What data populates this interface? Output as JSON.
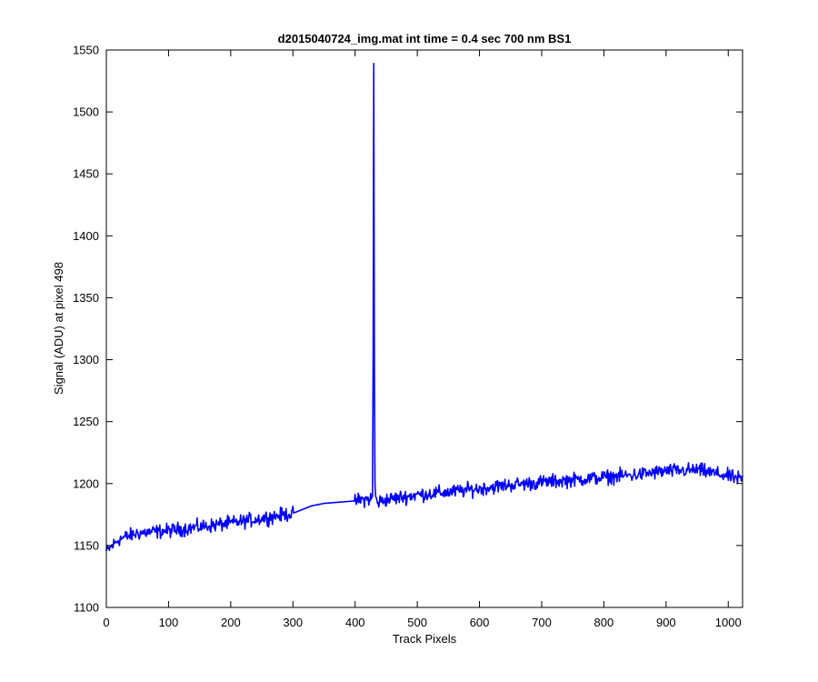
{
  "chart_data": {
    "type": "line",
    "title": "d2015040724_img.mat int time = 0.4 sec  700 nm BS1",
    "xlabel": "Track Pixels",
    "ylabel": "Signal (ADU) at pixel 498",
    "xlim": [
      0,
      1023
    ],
    "ylim": [
      1100,
      1550
    ],
    "xticks": [
      0,
      100,
      200,
      300,
      400,
      500,
      600,
      700,
      800,
      900,
      1000
    ],
    "yticks": [
      1100,
      1150,
      1200,
      1250,
      1300,
      1350,
      1400,
      1450,
      1500,
      1550
    ],
    "grid": false,
    "legend": "none",
    "colors": {
      "line": "#0000ff",
      "axes": "#000000",
      "background": "#ffffff"
    },
    "series": [
      {
        "x": [
          0,
          20,
          50,
          100,
          150,
          200,
          250,
          300,
          330,
          350,
          400,
          428,
          429,
          430,
          431,
          432,
          433,
          434,
          435,
          436,
          450,
          500,
          550,
          600,
          650,
          700,
          750,
          800,
          850,
          900,
          950,
          1000,
          1023
        ],
        "values": [
          1145,
          1155,
          1160,
          1162,
          1165,
          1168,
          1172,
          1176,
          1182,
          1184,
          1186,
          1188,
          1300,
          1540,
          1290,
          1200,
          1190,
          1186,
          1185,
          1185,
          1187,
          1191,
          1193,
          1196,
          1199,
          1201,
          1203,
          1205,
          1207,
          1210,
          1211,
          1206,
          1203
        ],
        "noise_amplitude": 6
      }
    ]
  }
}
